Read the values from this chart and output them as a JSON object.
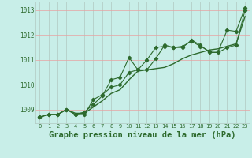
{
  "title": "Graphe pression niveau de la mer (hPa)",
  "x_values": [
    0,
    1,
    2,
    3,
    4,
    5,
    6,
    7,
    8,
    9,
    10,
    11,
    12,
    13,
    14,
    15,
    16,
    17,
    18,
    19,
    20,
    21,
    22,
    23
  ],
  "line1": [
    1008.7,
    1008.8,
    1008.8,
    1009.0,
    1008.8,
    1008.8,
    1009.4,
    1009.6,
    1009.9,
    1010.0,
    1010.5,
    1010.6,
    1010.6,
    1011.05,
    1011.6,
    1011.5,
    1011.5,
    1011.8,
    1011.6,
    1011.3,
    1011.3,
    1011.5,
    1011.6,
    1013.0
  ],
  "line2": [
    1008.7,
    1008.8,
    1008.8,
    1009.0,
    1008.8,
    1008.9,
    1009.2,
    1009.55,
    1010.2,
    1010.3,
    1011.1,
    1010.6,
    1011.0,
    1011.5,
    1011.55,
    1011.5,
    1011.55,
    1011.75,
    1011.55,
    1011.35,
    1011.35,
    1012.2,
    1012.15,
    1013.1
  ],
  "line3": [
    1008.7,
    1008.8,
    1008.8,
    1009.0,
    1008.85,
    1008.85,
    1009.1,
    1009.35,
    1009.65,
    1009.8,
    1010.2,
    1010.55,
    1010.6,
    1010.65,
    1010.7,
    1010.85,
    1011.05,
    1011.2,
    1011.3,
    1011.4,
    1011.45,
    1011.55,
    1011.65,
    1012.75
  ],
  "line_color": "#2d6a2d",
  "bg_color": "#c8eee8",
  "grid_color_v": "#b0c8c0",
  "grid_color_h": "#e8a0a0",
  "ylabel_values": [
    1009,
    1010,
    1011,
    1012,
    1013
  ],
  "ylim": [
    1008.45,
    1013.35
  ],
  "xlim": [
    -0.5,
    23.5
  ],
  "marker": "D",
  "marker_size": 2.2
}
